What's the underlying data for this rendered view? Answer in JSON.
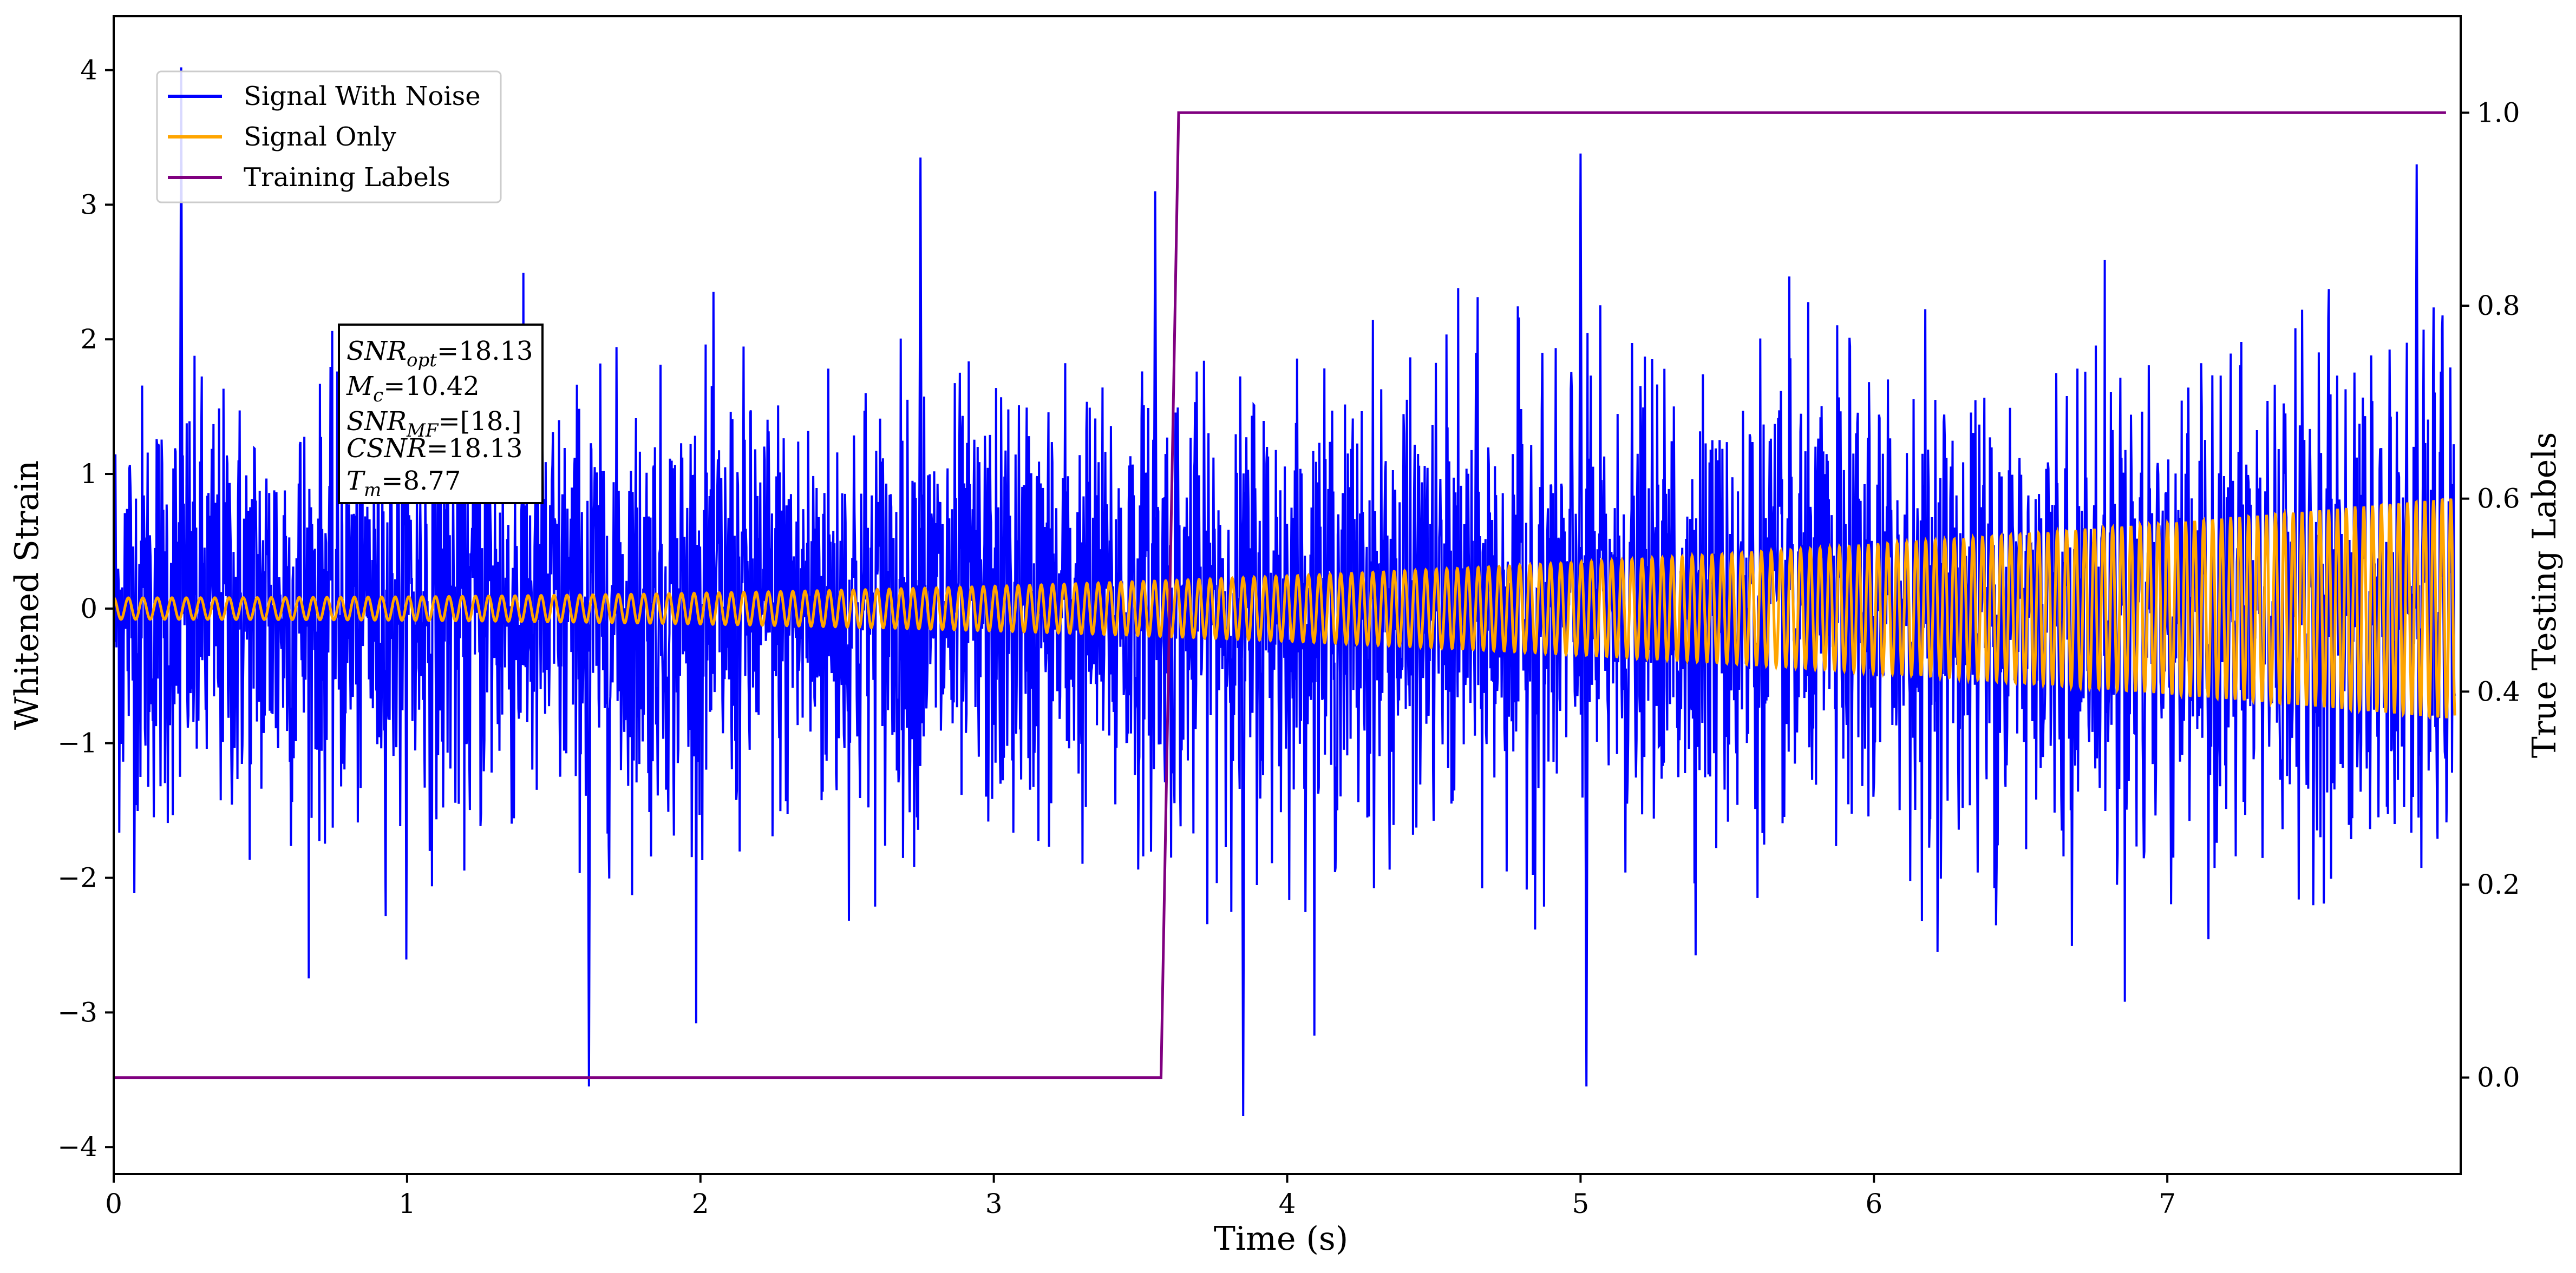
{
  "chart_data": {
    "type": "line",
    "xlabel": "Time (s)",
    "ylabel_left": "Whitened Strain",
    "ylabel_right": "True Testing Labels",
    "xlim": [
      0,
      8.0
    ],
    "ylim_left": [
      -4.2,
      4.4
    ],
    "ylim_right": [
      -0.1,
      1.1
    ],
    "x_ticks": [
      "0",
      "1",
      "2",
      "3",
      "4",
      "5",
      "6",
      "7"
    ],
    "y_ticks_left": [
      "−4",
      "−3",
      "−2",
      "−1",
      "0",
      "1",
      "2",
      "3",
      "4"
    ],
    "y_ticks_right": [
      "0.0",
      "0.2",
      "0.4",
      "0.6",
      "0.8",
      "1.0"
    ],
    "grid": false,
    "legend_position": "upper-left",
    "series": [
      {
        "name": "Signal With Noise",
        "color": "#0000ff",
        "axis": "left",
        "description_values": {
          "noise_envelope_typical": [
            -1.5,
            1.5
          ],
          "peaks": [
            {
              "x": 0.23,
              "y": 4.02
            },
            {
              "x": 1.62,
              "y": -3.55
            },
            {
              "x": 3.55,
              "y": 3.1
            },
            {
              "x": 3.85,
              "y": -3.77
            },
            {
              "x": 5.02,
              "y": -3.55
            },
            {
              "x": 5.0,
              "y": 3.38
            },
            {
              "x": 2.75,
              "y": 3.35
            },
            {
              "x": 7.85,
              "y": 3.3
            }
          ]
        }
      },
      {
        "name": "Signal Only",
        "color": "#ffa500",
        "axis": "left",
        "amplitude_start": 0.08,
        "amplitude_end": 0.82,
        "frequency_start_hz": 20,
        "frequency_end_hz": 34
      },
      {
        "name": "Training Labels",
        "color": "#800080",
        "axis": "right",
        "x": [
          0,
          3.57,
          3.63,
          7.95
        ],
        "y": [
          0.0,
          0.0,
          1.0,
          1.0
        ]
      }
    ],
    "annotation": {
      "lines": [
        {
          "var": "SNR",
          "sub": "opt",
          "value": "=18.13"
        },
        {
          "var": "M",
          "sub": "c",
          "value": "=10.42"
        },
        {
          "var": "SNR",
          "sub": "MF",
          "value": "=[18.]"
        },
        {
          "var": "CSNR",
          "sub": "",
          "value": "=18.13"
        },
        {
          "var": "T",
          "sub": "m",
          "value": "=8.77"
        }
      ]
    }
  }
}
